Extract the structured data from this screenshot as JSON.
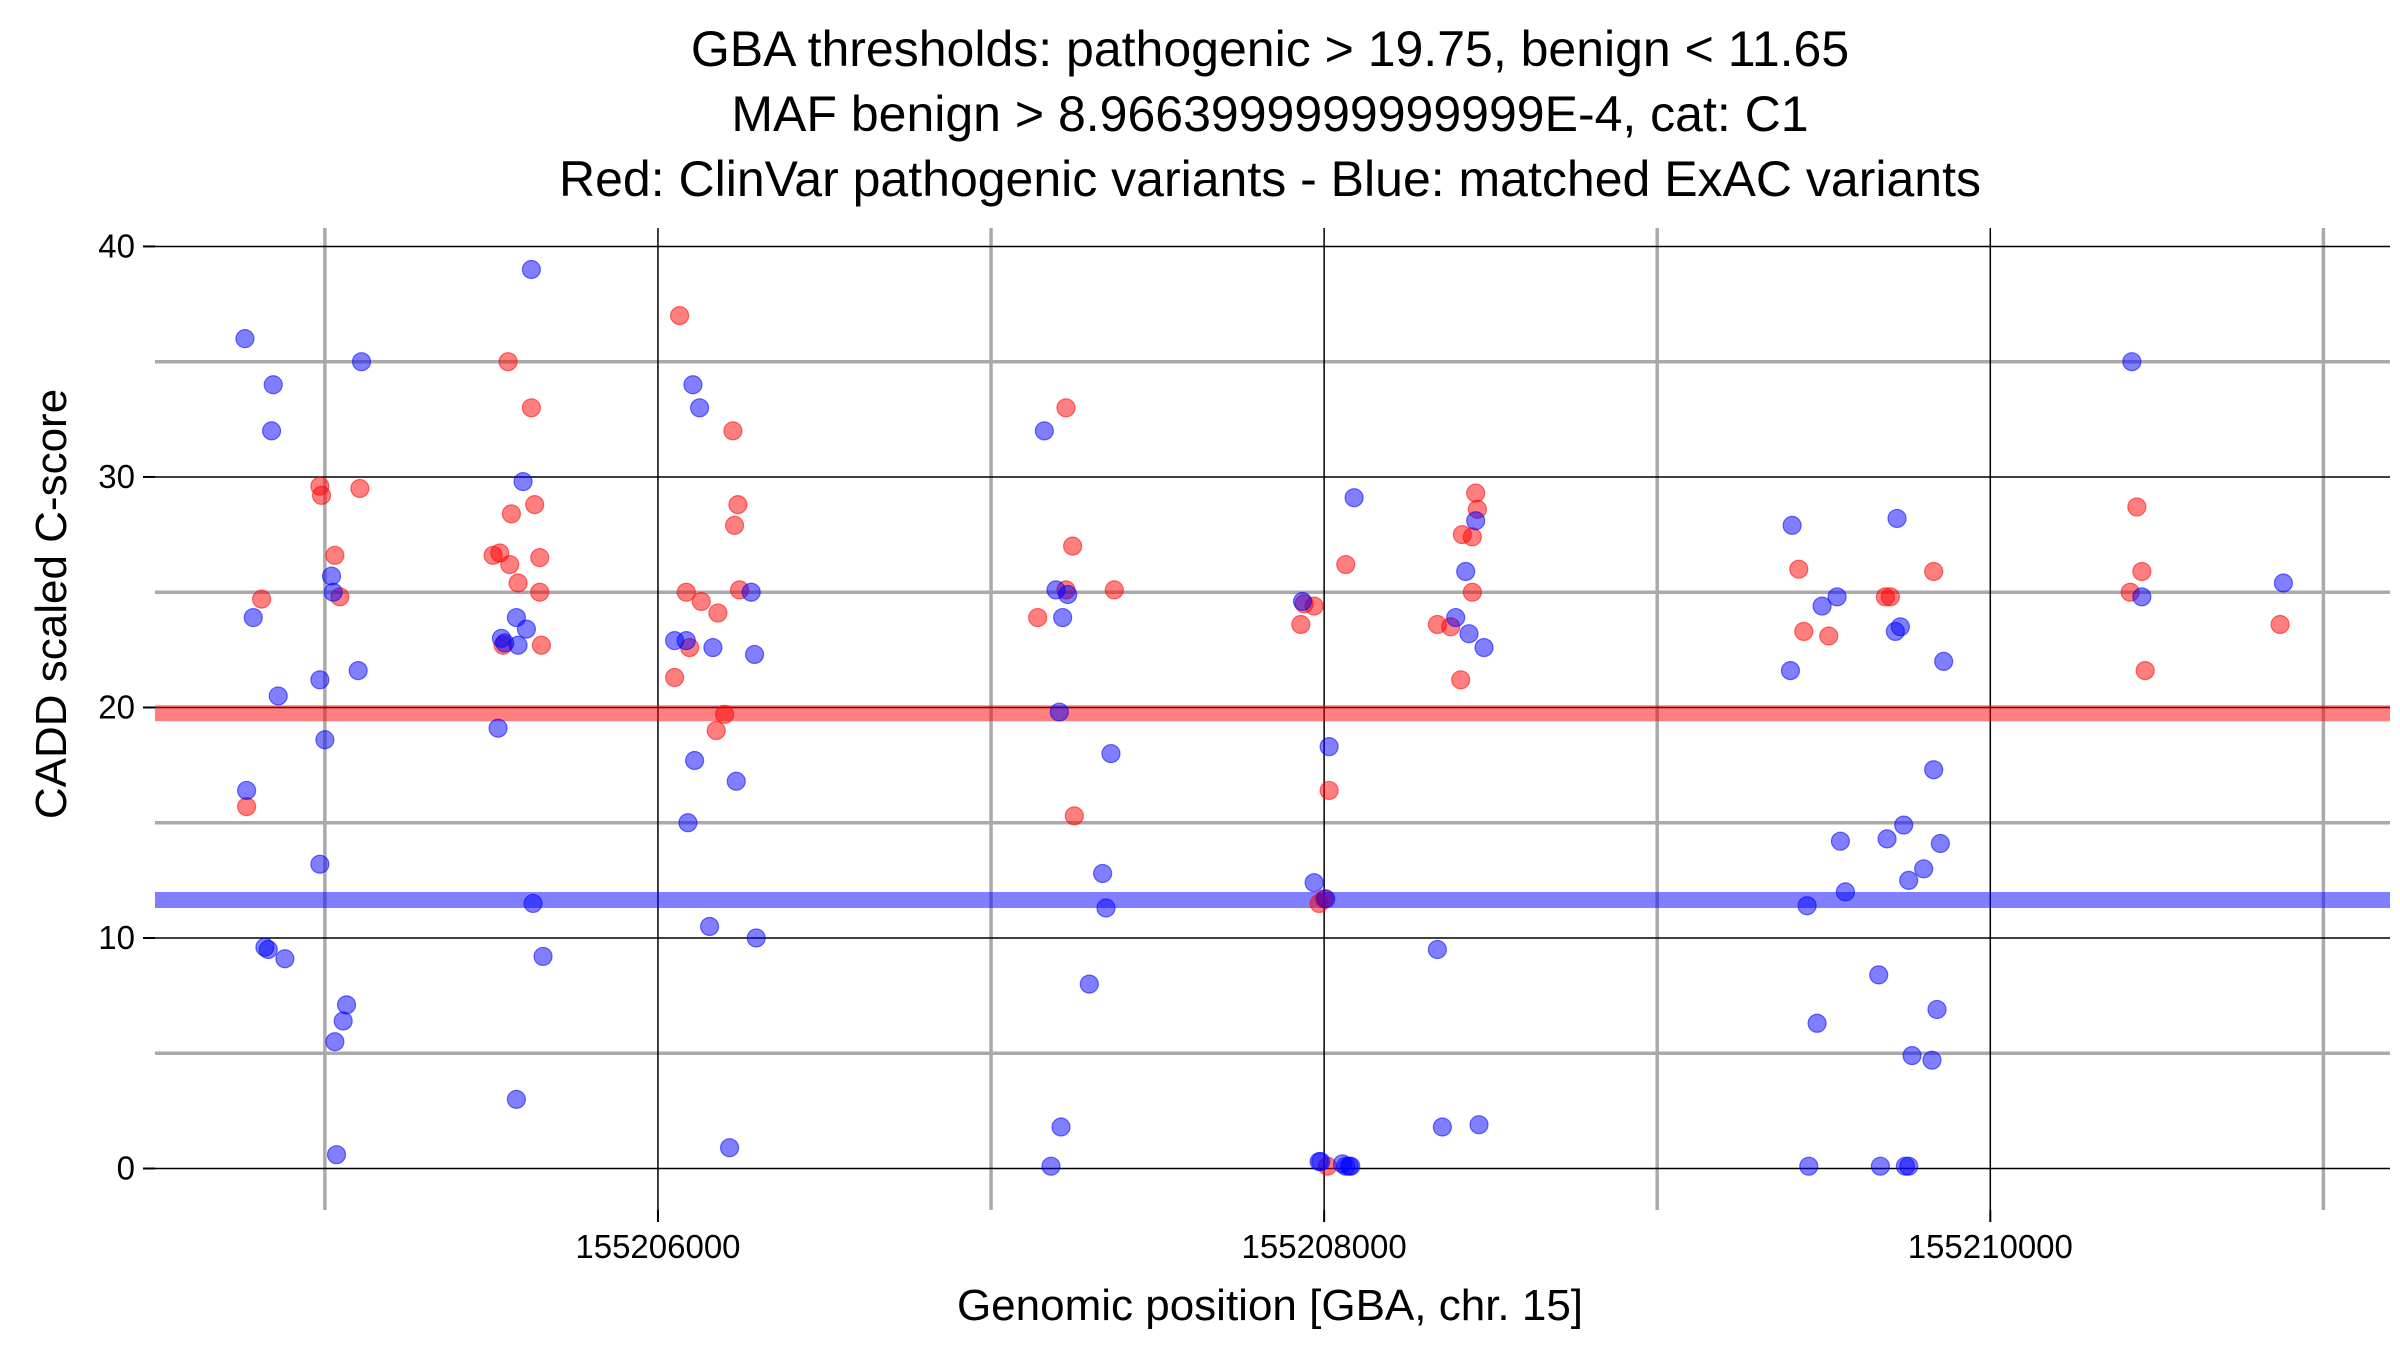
{
  "chart_data": {
    "type": "scatter",
    "title_lines": [
      "GBA thresholds: pathogenic > 19.75, benign < 11.65",
      "MAF benign > 8.9663999999999999E-4, cat: C1",
      "Red: ClinVar pathogenic variants - Blue: matched ExAC variants"
    ],
    "xlabel": "Genomic position [GBA, chr. 15]",
    "ylabel": "CADD scaled C-score",
    "xlim": [
      155204490,
      155211200
    ],
    "ylim": [
      -1.8,
      40.8
    ],
    "x_ticks": [
      155206000,
      155208000,
      155210000
    ],
    "x_tick_labels": [
      "155206000",
      "155208000",
      "155210000"
    ],
    "x_minor_ticks": [
      155205000,
      155207000,
      155209000,
      155211000
    ],
    "y_ticks": [
      0,
      10,
      20,
      30,
      40
    ],
    "y_tick_labels": [
      "0",
      "10",
      "20",
      "30",
      "40"
    ],
    "y_minor_ticks": [
      5,
      15,
      25,
      35
    ],
    "grid": true,
    "colors": {
      "pathogenic": "#ff0000",
      "benign": "#0000ff",
      "major_grid": "#000000",
      "minor_grid": "#aaaaaa"
    },
    "thresholds": [
      {
        "value": 19.75,
        "color": "#ff0000"
      },
      {
        "value": 11.65,
        "color": "#0000ff"
      }
    ],
    "series": [
      {
        "color": "#ff0000",
        "points": [
          [
            155204765,
            15.7
          ],
          [
            155204810,
            24.7
          ],
          [
            155204985,
            29.6
          ],
          [
            155204990,
            29.2
          ],
          [
            155205030,
            26.6
          ],
          [
            155205045,
            24.8
          ],
          [
            155205105,
            29.5
          ],
          [
            155205505,
            26.6
          ],
          [
            155205525,
            26.7
          ],
          [
            155205555,
            26.2
          ],
          [
            155205550,
            35.0
          ],
          [
            155205560,
            28.4
          ],
          [
            155205580,
            25.4
          ],
          [
            155205535,
            22.7
          ],
          [
            155205620,
            33.0
          ],
          [
            155205630,
            28.8
          ],
          [
            155205645,
            26.5
          ],
          [
            155205645,
            25.0
          ],
          [
            155205650,
            22.7
          ],
          [
            155206065,
            37.0
          ],
          [
            155206050,
            21.3
          ],
          [
            155206085,
            25.0
          ],
          [
            155206095,
            22.6
          ],
          [
            155206130,
            24.6
          ],
          [
            155206180,
            24.1
          ],
          [
            155206175,
            19.0
          ],
          [
            155206200,
            19.7
          ],
          [
            155206225,
            32.0
          ],
          [
            155206230,
            27.9
          ],
          [
            155206240,
            28.8
          ],
          [
            155206245,
            25.1
          ],
          [
            155207140,
            23.9
          ],
          [
            155207225,
            33.0
          ],
          [
            155207225,
            25.1
          ],
          [
            155207245,
            27.0
          ],
          [
            155207250,
            15.3
          ],
          [
            155207370,
            25.1
          ],
          [
            155207930,
            23.6
          ],
          [
            155207940,
            24.5
          ],
          [
            155207970,
            24.4
          ],
          [
            155207985,
            11.5
          ],
          [
            155208000,
            11.7
          ],
          [
            155208010,
            0.1
          ],
          [
            155208015,
            16.4
          ],
          [
            155208065,
            26.2
          ],
          [
            155208340,
            23.6
          ],
          [
            155208380,
            23.5
          ],
          [
            155208410,
            21.2
          ],
          [
            155208415,
            27.5
          ],
          [
            155208445,
            27.4
          ],
          [
            155208445,
            25.0
          ],
          [
            155208455,
            29.3
          ],
          [
            155208460,
            28.6
          ],
          [
            155209425,
            26.0
          ],
          [
            155209440,
            23.3
          ],
          [
            155209515,
            23.1
          ],
          [
            155209685,
            24.8
          ],
          [
            155209700,
            24.8
          ],
          [
            155209830,
            25.9
          ],
          [
            155210420,
            25.0
          ],
          [
            155210440,
            28.7
          ],
          [
            155210455,
            25.9
          ],
          [
            155210465,
            21.6
          ],
          [
            155210870,
            23.6
          ]
        ]
      },
      {
        "color": "#0000ff",
        "points": [
          [
            155204760,
            36.0
          ],
          [
            155204765,
            16.4
          ],
          [
            155204785,
            23.9
          ],
          [
            155204820,
            9.6
          ],
          [
            155204830,
            9.5
          ],
          [
            155204840,
            32.0
          ],
          [
            155204845,
            34.0
          ],
          [
            155204860,
            20.5
          ],
          [
            155204880,
            9.1
          ],
          [
            155204985,
            21.2
          ],
          [
            155204985,
            13.2
          ],
          [
            155205000,
            18.6
          ],
          [
            155205020,
            25.7
          ],
          [
            155205025,
            25.0
          ],
          [
            155205030,
            5.5
          ],
          [
            155205035,
            0.6
          ],
          [
            155205055,
            6.4
          ],
          [
            155205065,
            7.1
          ],
          [
            155205100,
            21.6
          ],
          [
            155205110,
            35.0
          ],
          [
            155205520,
            19.1
          ],
          [
            155205530,
            23.0
          ],
          [
            155205540,
            22.8
          ],
          [
            155205575,
            23.9
          ],
          [
            155205580,
            22.7
          ],
          [
            155205575,
            3.0
          ],
          [
            155205595,
            29.8
          ],
          [
            155205605,
            23.4
          ],
          [
            155205620,
            39.0
          ],
          [
            155205625,
            11.5
          ],
          [
            155205655,
            9.2
          ],
          [
            155206050,
            22.9
          ],
          [
            155206085,
            22.9
          ],
          [
            155206090,
            15.0
          ],
          [
            155206110,
            17.7
          ],
          [
            155206105,
            34.0
          ],
          [
            155206125,
            33.0
          ],
          [
            155206155,
            10.5
          ],
          [
            155206165,
            22.6
          ],
          [
            155206215,
            0.9
          ],
          [
            155206235,
            16.8
          ],
          [
            155206280,
            25.0
          ],
          [
            155206290,
            22.3
          ],
          [
            155206295,
            10.0
          ],
          [
            155207160,
            32.0
          ],
          [
            155207180,
            0.1
          ],
          [
            155207195,
            25.1
          ],
          [
            155207205,
            19.8
          ],
          [
            155207210,
            1.8
          ],
          [
            155207215,
            23.9
          ],
          [
            155207230,
            24.9
          ],
          [
            155207295,
            8.0
          ],
          [
            155207335,
            12.8
          ],
          [
            155207345,
            11.3
          ],
          [
            155207360,
            18.0
          ],
          [
            155207935,
            24.6
          ],
          [
            155207970,
            12.4
          ],
          [
            155207985,
            0.3
          ],
          [
            155207990,
            0.3
          ],
          [
            155208005,
            11.7
          ],
          [
            155208015,
            18.3
          ],
          [
            155208055,
            0.2
          ],
          [
            155208065,
            0.1
          ],
          [
            155208075,
            0.1
          ],
          [
            155208080,
            0.1
          ],
          [
            155208090,
            29.1
          ],
          [
            155208340,
            9.5
          ],
          [
            155208355,
            1.8
          ],
          [
            155208395,
            23.9
          ],
          [
            155208425,
            25.9
          ],
          [
            155208435,
            23.2
          ],
          [
            155208455,
            28.1
          ],
          [
            155208465,
            1.9
          ],
          [
            155208480,
            22.6
          ],
          [
            155209405,
            27.9
          ],
          [
            155209400,
            21.6
          ],
          [
            155209450,
            11.4
          ],
          [
            155209455,
            0.1
          ],
          [
            155209480,
            6.3
          ],
          [
            155209495,
            24.4
          ],
          [
            155209540,
            24.8
          ],
          [
            155209550,
            14.2
          ],
          [
            155209565,
            12.0
          ],
          [
            155209665,
            8.4
          ],
          [
            155209670,
            0.1
          ],
          [
            155209690,
            14.3
          ],
          [
            155209715,
            23.3
          ],
          [
            155209720,
            28.2
          ],
          [
            155209730,
            23.5
          ],
          [
            155209740,
            14.9
          ],
          [
            155209745,
            0.1
          ],
          [
            155209755,
            0.1
          ],
          [
            155209755,
            12.5
          ],
          [
            155209765,
            4.9
          ],
          [
            155209800,
            13.0
          ],
          [
            155209825,
            4.7
          ],
          [
            155209830,
            17.3
          ],
          [
            155209840,
            6.9
          ],
          [
            155209850,
            14.1
          ],
          [
            155209860,
            22.0
          ],
          [
            155210425,
            35.0
          ],
          [
            155210455,
            24.8
          ],
          [
            155210880,
            25.4
          ]
        ]
      }
    ]
  }
}
